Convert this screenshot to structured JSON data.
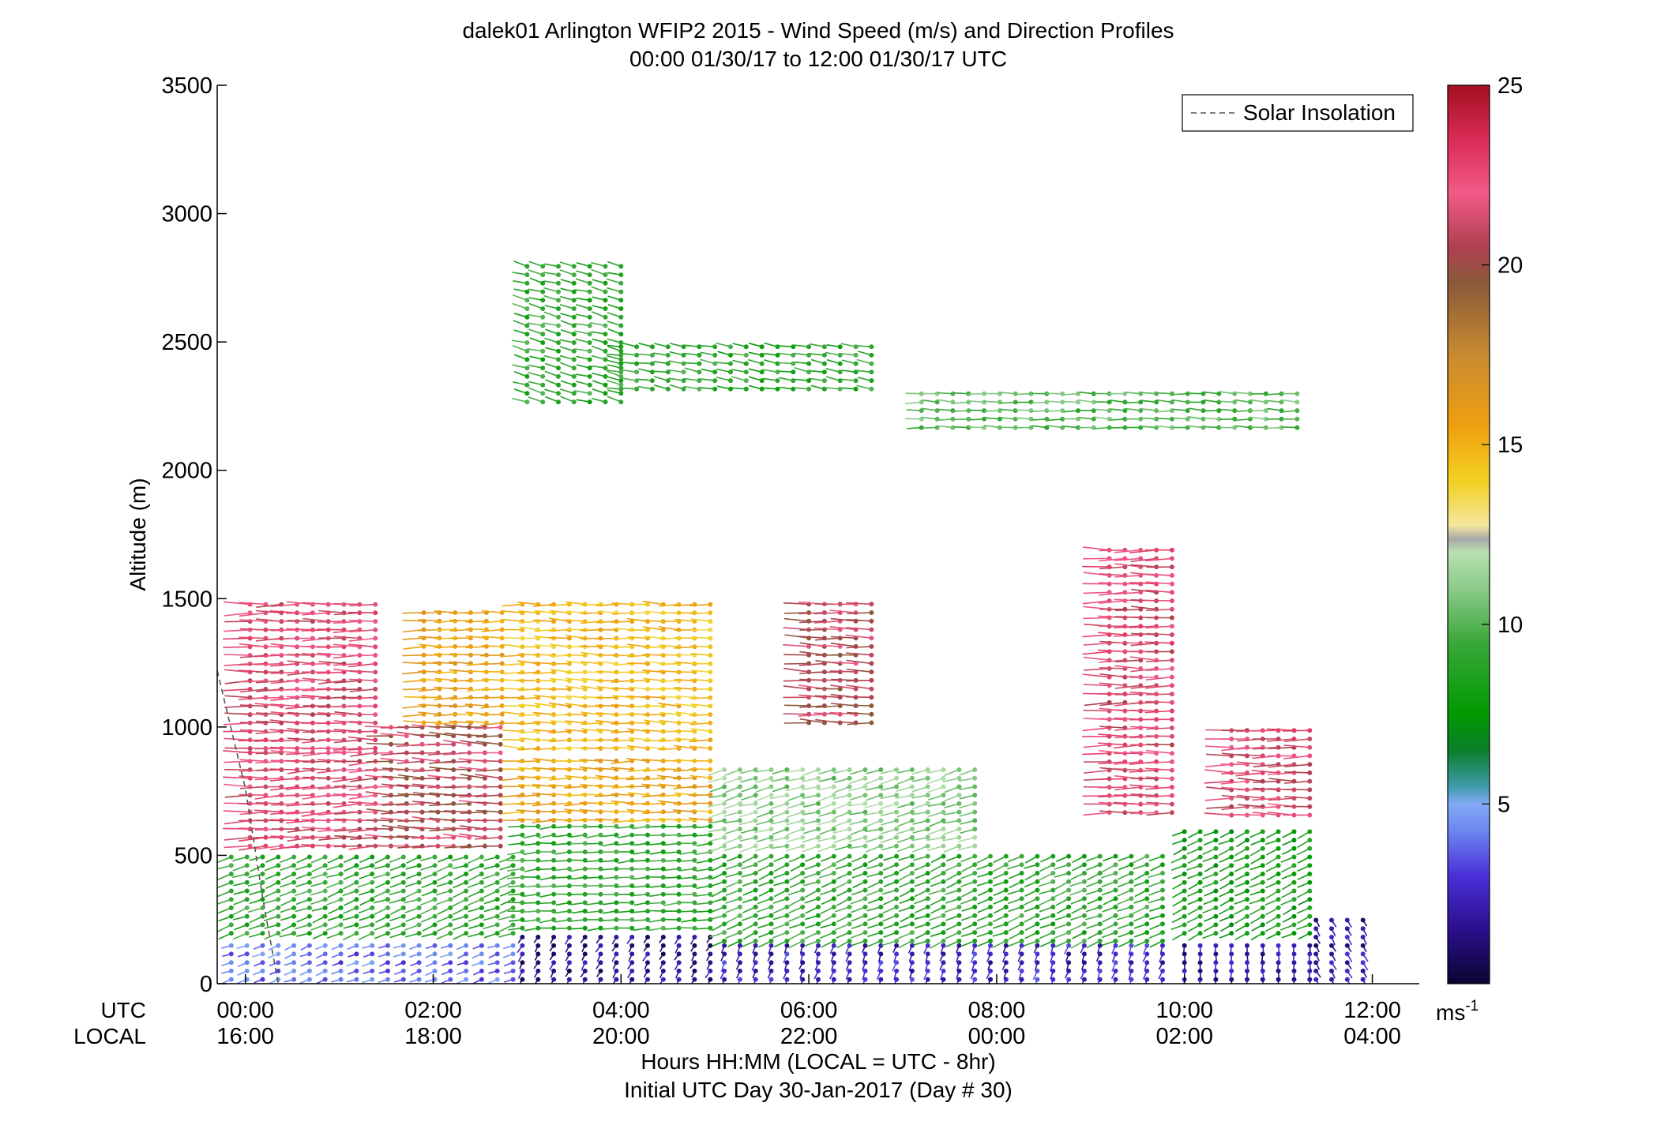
{
  "title": "dalek01 Arlington WFIP2 2015 - Wind Speed (m/s) and Direction Profiles",
  "subtitle": "00:00 01/30/17 to 12:00 01/30/17  UTC",
  "legend_label": "Solar Insolation",
  "colorbar": {
    "unit_base": "ms",
    "unit_exp": "-1",
    "ticks": [
      "5",
      "10",
      "15",
      "20",
      "25"
    ],
    "range": [
      0,
      25
    ]
  },
  "x_row_labels": {
    "utc": "UTC",
    "local": "LOCAL"
  },
  "xlabel": "Hours HH:MM  (LOCAL = UTC - 8hr)",
  "xlabel2": "Initial UTC Day 30-Jan-2017 (Day # 30)",
  "ylabel": "Altitude (m)",
  "colors": {
    "axis": "#000000",
    "solar_line": "#555555"
  },
  "chart_data": {
    "type": "wind_barbs",
    "title": "dalek01 Arlington WFIP2 2015 - Wind Speed (m/s) and Direction Profiles",
    "xlabel": "Hours HH:MM  (LOCAL = UTC - 8hr)",
    "ylabel": "Altitude (m)",
    "xlim_hours": [
      -0.3,
      12.5
    ],
    "ylim": [
      0,
      3500
    ],
    "y_ticks": [
      0,
      500,
      1000,
      1500,
      2000,
      2500,
      3000,
      3500
    ],
    "x_ticks_utc": [
      "00:00",
      "02:00",
      "04:00",
      "06:00",
      "08:00",
      "10:00",
      "12:00"
    ],
    "x_ticks_local": [
      "16:00",
      "18:00",
      "20:00",
      "22:00",
      "00:00",
      "02:00",
      "04:00"
    ],
    "x_tick_hours": [
      0,
      2,
      4,
      6,
      8,
      10,
      12
    ],
    "legend": [
      {
        "name": "Solar Insolation",
        "style": "dashed"
      }
    ],
    "colorbar_range": [
      0,
      25
    ],
    "solar_insolation": {
      "x_hours": [
        -0.3,
        0.0,
        0.2,
        0.35
      ],
      "y": [
        1220,
        760,
        300,
        0
      ]
    },
    "regions": [
      {
        "t": [
          -0.15,
          2.85
        ],
        "z": [
          0,
          180
        ],
        "speed": 4,
        "dir": 250
      },
      {
        "t": [
          -0.15,
          2.85
        ],
        "z": [
          180,
          500
        ],
        "speed": 9,
        "dir": 250
      },
      {
        "t": [
          0.05,
          1.45
        ],
        "z": [
          520,
          900
        ],
        "speed": 22,
        "dir": 268
      },
      {
        "t": [
          0.05,
          1.45
        ],
        "z": [
          900,
          1500
        ],
        "speed": 22,
        "dir": 270
      },
      {
        "t": [
          1.55,
          2.85
        ],
        "z": [
          520,
          1000
        ],
        "speed": 21,
        "dir": 272
      },
      {
        "t": [
          1.9,
          2.85
        ],
        "z": [
          1000,
          1450
        ],
        "speed": 16,
        "dir": 270
      },
      {
        "t": [
          2.95,
          5.0
        ],
        "z": [
          0,
          200
        ],
        "speed": 1.5,
        "dir": 210
      },
      {
        "t": [
          2.95,
          5.0
        ],
        "z": [
          200,
          620
        ],
        "speed": 9,
        "dir": 265
      },
      {
        "t": [
          2.95,
          5.0
        ],
        "z": [
          620,
          900
        ],
        "speed": 16,
        "dir": 270
      },
      {
        "t": [
          2.95,
          5.0
        ],
        "z": [
          900,
          1480
        ],
        "speed": 15,
        "dir": 272
      },
      {
        "t": [
          3.0,
          4.0
        ],
        "z": [
          2250,
          2800
        ],
        "speed": 9,
        "dir": 285
      },
      {
        "t": [
          4.0,
          6.8
        ],
        "z": [
          2300,
          2500
        ],
        "speed": 9,
        "dir": 280
      },
      {
        "t": [
          5.1,
          9.9
        ],
        "z": [
          0,
          150
        ],
        "speed": 2.5,
        "dir": 200
      },
      {
        "t": [
          5.1,
          9.9
        ],
        "z": [
          150,
          520
        ],
        "speed": 9,
        "dir": 248
      },
      {
        "t": [
          5.1,
          7.8
        ],
        "z": [
          520,
          860
        ],
        "speed": 11,
        "dir": 255
      },
      {
        "t": [
          6.0,
          6.8
        ],
        "z": [
          1000,
          1500
        ],
        "speed": 21,
        "dir": 272
      },
      {
        "t": [
          7.2,
          11.3
        ],
        "z": [
          2150,
          2320
        ],
        "speed": 10,
        "dir": 272
      },
      {
        "t": [
          9.2,
          10.0
        ],
        "z": [
          650,
          1700
        ],
        "speed": 22,
        "dir": 270
      },
      {
        "t": [
          10.0,
          11.35
        ],
        "z": [
          0,
          180
        ],
        "speed": 2,
        "dir": 180
      },
      {
        "t": [
          10.0,
          11.35
        ],
        "z": [
          180,
          600
        ],
        "speed": 8,
        "dir": 245
      },
      {
        "t": [
          10.5,
          11.35
        ],
        "z": [
          640,
          1000
        ],
        "speed": 22,
        "dir": 270
      },
      {
        "t": [
          11.4,
          12.0
        ],
        "z": [
          0,
          280
        ],
        "speed": 2,
        "dir": 150
      }
    ]
  }
}
